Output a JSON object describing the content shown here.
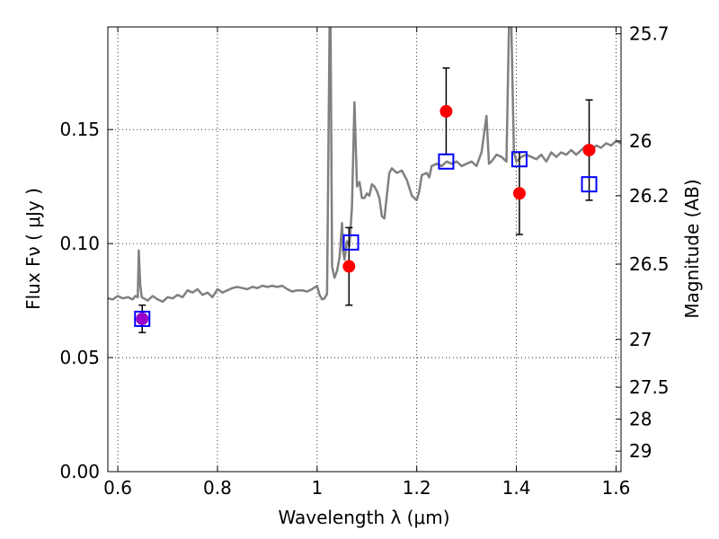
{
  "chart_data": {
    "type": "scatter",
    "title": "",
    "xlabel": "Wavelength  λ (μm)",
    "ylabel": "Flux  Fν  ( μJy )",
    "y2label": "Magnitude (AB)",
    "xlim": [
      0.58,
      1.61
    ],
    "ylim": [
      0.0,
      0.195
    ],
    "grid": true,
    "x_ticks": [
      0.6,
      0.8,
      1.0,
      1.2,
      1.4,
      1.6
    ],
    "x_tick_labels": [
      "0.6",
      "0.8",
      "1",
      "1.2",
      "1.4",
      "1.6"
    ],
    "y_ticks": [
      0.0,
      0.05,
      0.1,
      0.15
    ],
    "y_tick_labels": [
      "0.00",
      "0.05",
      "0.10",
      "0.15"
    ],
    "y2_ticks": [
      {
        "flux": 0.192,
        "label": "25.7"
      },
      {
        "flux": 0.145,
        "label": "26"
      },
      {
        "flux": 0.121,
        "label": "26.2"
      },
      {
        "flux": 0.091,
        "label": "26.5"
      },
      {
        "flux": 0.058,
        "label": "27"
      },
      {
        "flux": 0.037,
        "label": "27.5"
      },
      {
        "flux": 0.023,
        "label": "28"
      },
      {
        "flux": 0.009,
        "label": "29"
      }
    ],
    "colors": {
      "observed": "#ff0000",
      "model_photometry": "#0000ff",
      "spectrum": "#808080",
      "errorbar": "#000000",
      "overlap": "#9900cc"
    },
    "series": [
      {
        "name": "model spectrum",
        "style": "line",
        "points": [
          [
            0.58,
            0.076
          ],
          [
            0.59,
            0.0755
          ],
          [
            0.6,
            0.077
          ],
          [
            0.61,
            0.076
          ],
          [
            0.62,
            0.0765
          ],
          [
            0.63,
            0.0755
          ],
          [
            0.635,
            0.077
          ],
          [
            0.64,
            0.0765
          ],
          [
            0.642,
            0.097
          ],
          [
            0.645,
            0.082
          ],
          [
            0.648,
            0.0765
          ],
          [
            0.66,
            0.075
          ],
          [
            0.67,
            0.077
          ],
          [
            0.68,
            0.0755
          ],
          [
            0.69,
            0.0745
          ],
          [
            0.7,
            0.0765
          ],
          [
            0.71,
            0.076
          ],
          [
            0.72,
            0.0775
          ],
          [
            0.73,
            0.0765
          ],
          [
            0.74,
            0.0795
          ],
          [
            0.75,
            0.0785
          ],
          [
            0.76,
            0.08
          ],
          [
            0.77,
            0.0775
          ],
          [
            0.78,
            0.0785
          ],
          [
            0.79,
            0.0765
          ],
          [
            0.8,
            0.08
          ],
          [
            0.81,
            0.0785
          ],
          [
            0.82,
            0.0795
          ],
          [
            0.83,
            0.0805
          ],
          [
            0.84,
            0.081
          ],
          [
            0.85,
            0.0805
          ],
          [
            0.86,
            0.08
          ],
          [
            0.87,
            0.081
          ],
          [
            0.88,
            0.0805
          ],
          [
            0.89,
            0.0815
          ],
          [
            0.9,
            0.081
          ],
          [
            0.91,
            0.0815
          ],
          [
            0.92,
            0.081
          ],
          [
            0.93,
            0.0815
          ],
          [
            0.94,
            0.08
          ],
          [
            0.95,
            0.079
          ],
          [
            0.96,
            0.0795
          ],
          [
            0.97,
            0.0795
          ],
          [
            0.98,
            0.079
          ],
          [
            0.99,
            0.08
          ],
          [
            1.0,
            0.0815
          ],
          [
            1.005,
            0.0775
          ],
          [
            1.01,
            0.0755
          ],
          [
            1.015,
            0.076
          ],
          [
            1.02,
            0.078
          ],
          [
            1.025,
            0.195
          ],
          [
            1.027,
            0.195
          ],
          [
            1.03,
            0.09
          ],
          [
            1.035,
            0.085
          ],
          [
            1.04,
            0.088
          ],
          [
            1.045,
            0.094
          ],
          [
            1.05,
            0.109
          ],
          [
            1.052,
            0.097
          ],
          [
            1.055,
            0.093
          ],
          [
            1.06,
            0.101
          ],
          [
            1.065,
            0.099
          ],
          [
            1.07,
            0.116
          ],
          [
            1.075,
            0.162
          ],
          [
            1.08,
            0.125
          ],
          [
            1.085,
            0.127
          ],
          [
            1.09,
            0.12
          ],
          [
            1.095,
            0.12
          ],
          [
            1.1,
            0.122
          ],
          [
            1.105,
            0.121
          ],
          [
            1.11,
            0.126
          ],
          [
            1.115,
            0.125
          ],
          [
            1.12,
            0.123
          ],
          [
            1.125,
            0.12
          ],
          [
            1.13,
            0.112
          ],
          [
            1.135,
            0.111
          ],
          [
            1.14,
            0.121
          ],
          [
            1.145,
            0.131
          ],
          [
            1.15,
            0.133
          ],
          [
            1.16,
            0.131
          ],
          [
            1.17,
            0.132
          ],
          [
            1.18,
            0.128
          ],
          [
            1.19,
            0.121
          ],
          [
            1.2,
            0.119
          ],
          [
            1.205,
            0.123
          ],
          [
            1.21,
            0.13
          ],
          [
            1.22,
            0.131
          ],
          [
            1.225,
            0.129
          ],
          [
            1.23,
            0.134
          ],
          [
            1.24,
            0.135
          ],
          [
            1.25,
            0.134
          ],
          [
            1.26,
            0.136
          ],
          [
            1.27,
            0.135
          ],
          [
            1.28,
            0.136
          ],
          [
            1.29,
            0.134
          ],
          [
            1.3,
            0.135
          ],
          [
            1.31,
            0.136
          ],
          [
            1.32,
            0.134
          ],
          [
            1.33,
            0.14
          ],
          [
            1.34,
            0.156
          ],
          [
            1.345,
            0.135
          ],
          [
            1.35,
            0.136
          ],
          [
            1.36,
            0.139
          ],
          [
            1.37,
            0.138
          ],
          [
            1.38,
            0.136
          ],
          [
            1.385,
            0.195
          ],
          [
            1.39,
            0.195
          ],
          [
            1.395,
            0.14
          ],
          [
            1.4,
            0.136
          ],
          [
            1.41,
            0.138
          ],
          [
            1.42,
            0.139
          ],
          [
            1.43,
            0.138
          ],
          [
            1.44,
            0.137
          ],
          [
            1.45,
            0.139
          ],
          [
            1.46,
            0.136
          ],
          [
            1.47,
            0.14
          ],
          [
            1.48,
            0.138
          ],
          [
            1.49,
            0.14
          ],
          [
            1.5,
            0.139
          ],
          [
            1.51,
            0.141
          ],
          [
            1.52,
            0.139
          ],
          [
            1.53,
            0.141
          ],
          [
            1.54,
            0.143
          ],
          [
            1.55,
            0.141
          ],
          [
            1.56,
            0.143
          ],
          [
            1.57,
            0.142
          ],
          [
            1.58,
            0.144
          ],
          [
            1.59,
            0.143
          ],
          [
            1.6,
            0.145
          ],
          [
            1.61,
            0.144
          ]
        ]
      },
      {
        "name": "observed flux",
        "style": "circle",
        "points": [
          {
            "x": 0.649,
            "y": 0.067,
            "err": 0.006
          },
          {
            "x": 1.064,
            "y": 0.09,
            "err": 0.017
          },
          {
            "x": 1.259,
            "y": 0.158,
            "err": 0.019
          },
          {
            "x": 1.406,
            "y": 0.122,
            "err": 0.018
          },
          {
            "x": 1.546,
            "y": 0.141,
            "err": 0.022
          }
        ]
      },
      {
        "name": "model photometry",
        "style": "square",
        "points": [
          {
            "x": 0.649,
            "y": 0.067
          },
          {
            "x": 1.068,
            "y": 0.1005
          },
          {
            "x": 1.259,
            "y": 0.136
          },
          {
            "x": 1.406,
            "y": 0.137
          },
          {
            "x": 1.546,
            "y": 0.126
          }
        ]
      }
    ]
  }
}
